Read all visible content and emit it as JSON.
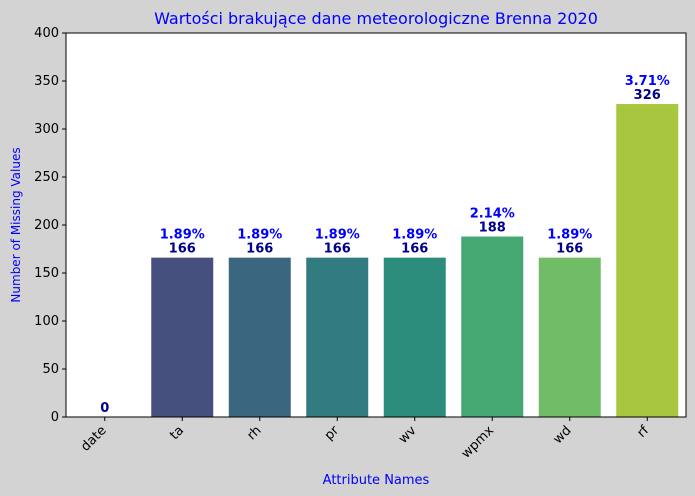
{
  "chart_data": {
    "type": "bar",
    "title": "Wartości brakujące dane meteorologiczne Brenna 2020",
    "xlabel": "Attribute Names",
    "ylabel": "Number of Missing Values",
    "ylim": [
      0,
      400
    ],
    "yticks": [
      0,
      50,
      100,
      150,
      200,
      250,
      300,
      350,
      400
    ],
    "categories": [
      "date",
      "ta",
      "rh",
      "pr",
      "wv",
      "wpmx",
      "wd",
      "rf"
    ],
    "values": [
      0,
      166,
      166,
      166,
      166,
      188,
      166,
      326
    ],
    "percent_labels": [
      "",
      "1.89%",
      "1.89%",
      "1.89%",
      "1.89%",
      "2.14%",
      "1.89%",
      "3.71%"
    ],
    "bar_colors": [
      "#3f2a6e",
      "#46507f",
      "#3b6680",
      "#327b80",
      "#2c8d7d",
      "#45a872",
      "#70bc67",
      "#a9c63f"
    ],
    "title_color": "#0000ff",
    "axis_label_color": "#0000ff",
    "percent_label_color": "#0000ff",
    "count_label_color": "#00008b",
    "plot_background": "#ffffff",
    "page_background": "#d3d3d3",
    "grid": false,
    "legend": "none"
  }
}
